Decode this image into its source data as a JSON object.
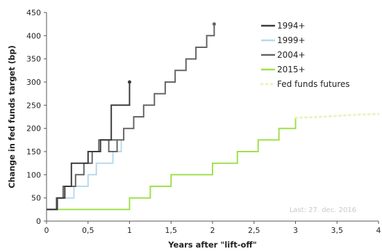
{
  "chart_data": {
    "type": "line",
    "step": true,
    "title": "",
    "xlabel": "Years after \"lift-off\"",
    "ylabel": "Change in fed funds target (bp)",
    "xlim": [
      0,
      4
    ],
    "ylim": [
      0,
      450
    ],
    "x_ticks": [
      "0",
      "0,5",
      "1",
      "1,5",
      "2",
      "2,5",
      "3",
      "3,5",
      "4"
    ],
    "y_ticks": [
      "0",
      "50",
      "100",
      "150",
      "200",
      "250",
      "300",
      "350",
      "400",
      "450"
    ],
    "grid": false,
    "legend_position": "top-right",
    "note": "Last: 27. dec. 2016",
    "series": [
      {
        "name": "1994+",
        "color": "#3a3a3a",
        "line_style": "solid",
        "end_marker": true,
        "points": [
          [
            0,
            25
          ],
          [
            0.13,
            25
          ],
          [
            0.13,
            50
          ],
          [
            0.22,
            50
          ],
          [
            0.22,
            75
          ],
          [
            0.3,
            75
          ],
          [
            0.3,
            125
          ],
          [
            0.5,
            125
          ],
          [
            0.5,
            150
          ],
          [
            0.65,
            150
          ],
          [
            0.65,
            175
          ],
          [
            0.78,
            175
          ],
          [
            0.78,
            250
          ],
          [
            1.0,
            250
          ],
          [
            1.0,
            300
          ]
        ]
      },
      {
        "name": "1999+",
        "color": "#b8d8ee",
        "line_style": "solid",
        "end_marker": false,
        "points": [
          [
            0,
            25
          ],
          [
            0.13,
            25
          ],
          [
            0.13,
            50
          ],
          [
            0.33,
            50
          ],
          [
            0.33,
            75
          ],
          [
            0.5,
            75
          ],
          [
            0.5,
            100
          ],
          [
            0.6,
            100
          ],
          [
            0.6,
            125
          ],
          [
            0.8,
            125
          ],
          [
            0.8,
            150
          ],
          [
            0.9,
            150
          ],
          [
            0.9,
            175
          ]
        ]
      },
      {
        "name": "2004+",
        "color": "#646464",
        "line_style": "solid",
        "end_marker": true,
        "points": [
          [
            0,
            25
          ],
          [
            0.12,
            25
          ],
          [
            0.12,
            50
          ],
          [
            0.2,
            50
          ],
          [
            0.2,
            75
          ],
          [
            0.35,
            75
          ],
          [
            0.35,
            100
          ],
          [
            0.45,
            100
          ],
          [
            0.45,
            125
          ],
          [
            0.55,
            125
          ],
          [
            0.55,
            150
          ],
          [
            0.63,
            150
          ],
          [
            0.63,
            175
          ],
          [
            0.88,
            175
          ],
          [
            0.88,
            175
          ],
          [
            0.75,
            175
          ],
          [
            0.75,
            150
          ],
          [
            0.85,
            150
          ],
          [
            0.85,
            175
          ],
          [
            0.93,
            175
          ],
          [
            0.93,
            200
          ],
          [
            1.05,
            200
          ],
          [
            1.05,
            225
          ],
          [
            1.17,
            225
          ],
          [
            1.17,
            250
          ],
          [
            1.3,
            250
          ],
          [
            1.3,
            275
          ],
          [
            1.43,
            275
          ],
          [
            1.43,
            300
          ],
          [
            1.55,
            300
          ],
          [
            1.55,
            325
          ],
          [
            1.68,
            325
          ],
          [
            1.68,
            350
          ],
          [
            1.8,
            350
          ],
          [
            1.8,
            375
          ],
          [
            1.93,
            375
          ],
          [
            1.93,
            400
          ],
          [
            2.02,
            400
          ],
          [
            2.02,
            425
          ]
        ]
      },
      {
        "name": "2015+",
        "color": "#9ee04a",
        "line_style": "solid",
        "end_marker": false,
        "points": [
          [
            0,
            25
          ],
          [
            1.0,
            25
          ],
          [
            1.0,
            50
          ],
          [
            1.25,
            50
          ],
          [
            1.25,
            75
          ],
          [
            1.5,
            75
          ],
          [
            1.5,
            100
          ],
          [
            2.0,
            100
          ],
          [
            2.0,
            125
          ],
          [
            2.3,
            125
          ],
          [
            2.3,
            150
          ],
          [
            2.55,
            150
          ],
          [
            2.55,
            175
          ],
          [
            2.8,
            175
          ],
          [
            2.8,
            200
          ],
          [
            3.0,
            200
          ],
          [
            3.0,
            225
          ]
        ]
      },
      {
        "name": "Fed funds futures",
        "color": "#eaf3c0",
        "line_style": "dotted",
        "end_marker": false,
        "points": [
          [
            3.0,
            223
          ],
          [
            3.2,
            224
          ],
          [
            3.4,
            226
          ],
          [
            3.6,
            228
          ],
          [
            3.8,
            230
          ],
          [
            4.0,
            231
          ]
        ]
      }
    ]
  }
}
